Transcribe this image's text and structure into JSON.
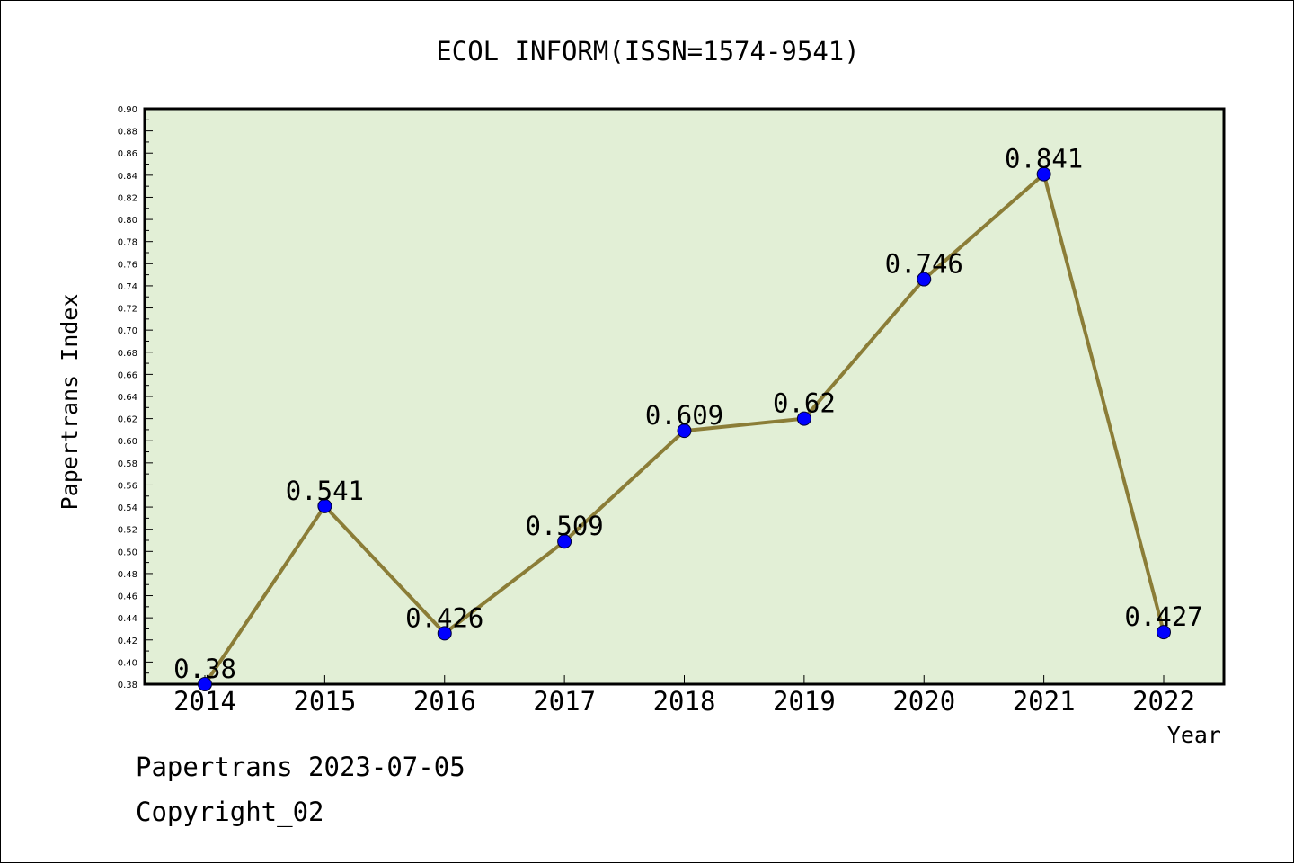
{
  "chart_data": {
    "type": "line",
    "title": "ECOL INFORM(ISSN=1574-9541)",
    "xlabel": "Year",
    "ylabel": "Papertrans Index",
    "categories": [
      "2014",
      "2015",
      "2016",
      "2017",
      "2018",
      "2019",
      "2020",
      "2021",
      "2022"
    ],
    "series": [
      {
        "values": [
          0.38,
          0.541,
          0.426,
          0.509,
          0.609,
          0.62,
          0.746,
          0.841,
          0.427
        ],
        "labels": [
          "0.38",
          "0.541",
          "0.426",
          "0.509",
          "0.609",
          "0.62",
          "0.746",
          "0.841",
          "0.427"
        ]
      }
    ],
    "ylim": [
      0.38,
      0.9
    ],
    "yticks": [
      "0.38",
      "0.40",
      "0.42",
      "0.44",
      "0.46",
      "0.48",
      "0.50",
      "0.52",
      "0.54",
      "0.56",
      "0.58",
      "0.60",
      "0.62",
      "0.64",
      "0.66",
      "0.68",
      "0.70",
      "0.72",
      "0.74",
      "0.76",
      "0.78",
      "0.80",
      "0.82",
      "0.84",
      "0.86",
      "0.88",
      "0.90"
    ],
    "grid": false,
    "colors": {
      "plot_background": "#e2efd6",
      "line": "#8b7d37",
      "marker": "#0000ff"
    }
  },
  "footer": {
    "date_text": "Papertrans 2023-07-05",
    "copyright_text": "Copyright_02"
  }
}
